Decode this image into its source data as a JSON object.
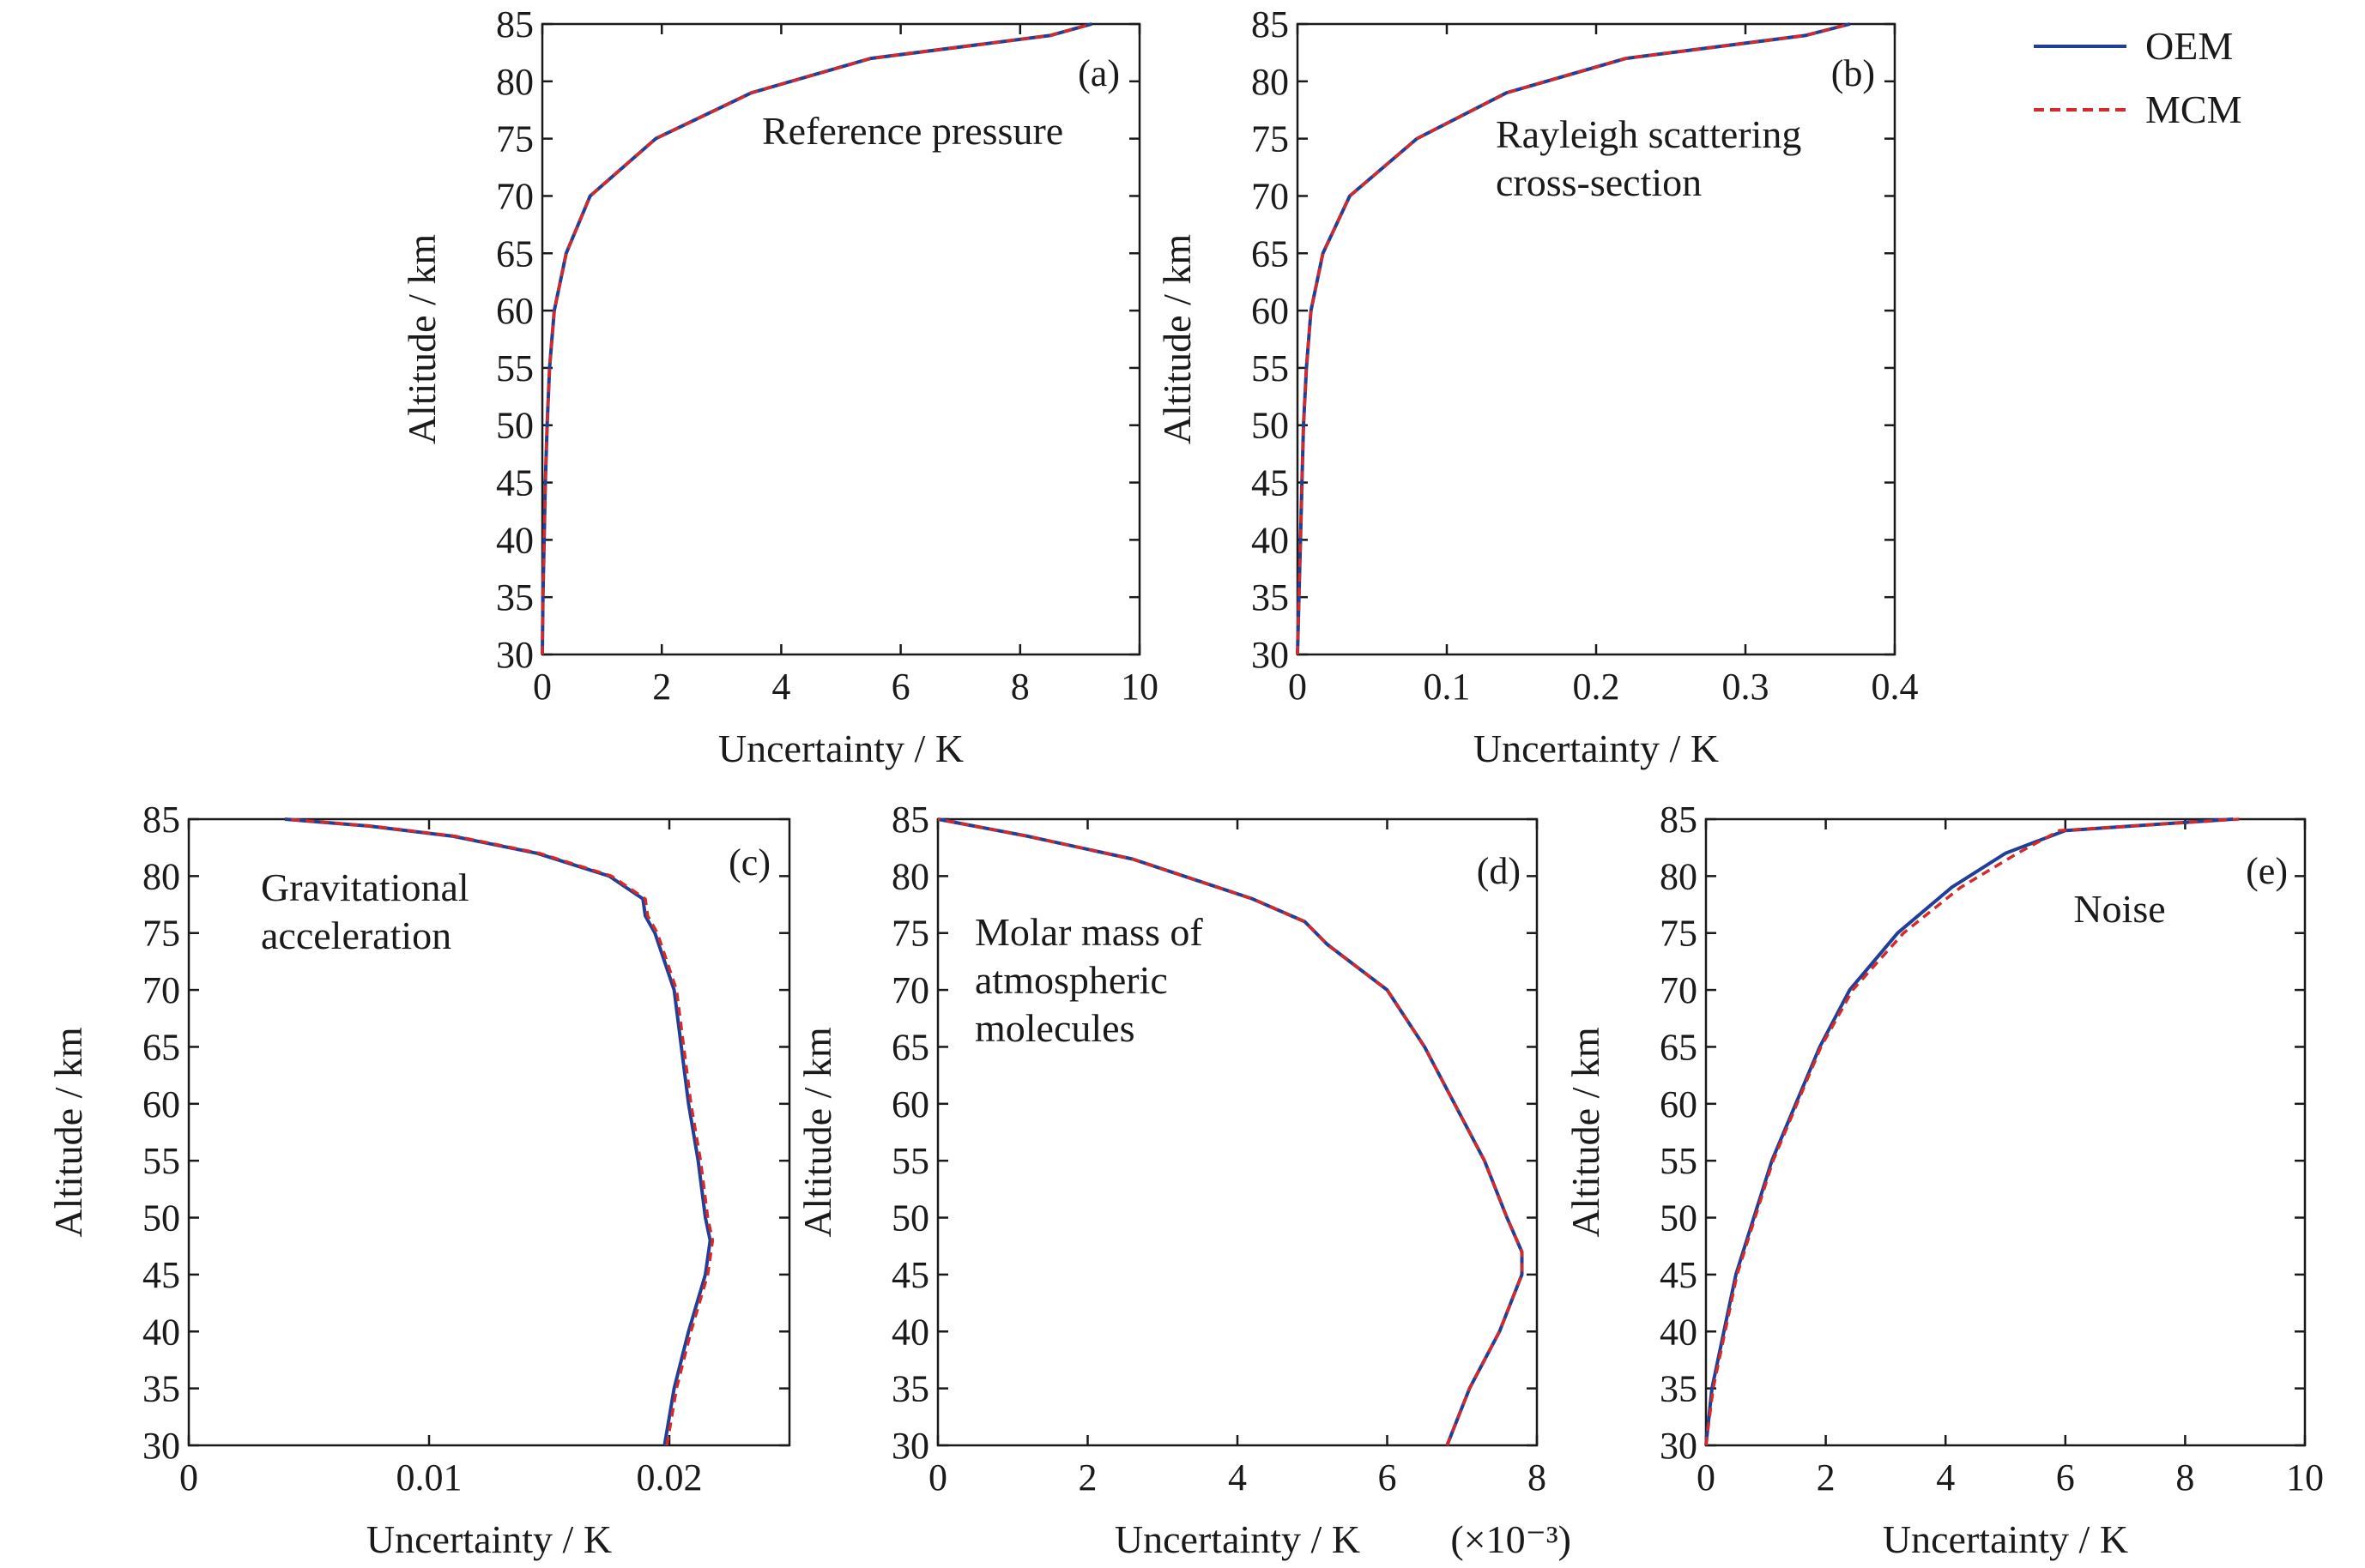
{
  "legend": {
    "position": "top-right",
    "entries": [
      {
        "label": "OEM",
        "color": "#1f3f99",
        "style": "solid"
      },
      {
        "label": "MCM",
        "color": "#d42a2a",
        "style": "dashed"
      }
    ]
  },
  "chart_data": [
    {
      "type": "line",
      "panel_tag": "(a)",
      "annotation": [
        "Reference pressure"
      ],
      "xlabel": "Uncertainty / K",
      "ylabel": "Altitude / km",
      "xlim": [
        0,
        10
      ],
      "ylim": [
        30,
        85
      ],
      "x_ticks": [
        "0",
        "2",
        "4",
        "6",
        "8",
        "10"
      ],
      "y_ticks": [
        "30",
        "35",
        "40",
        "45",
        "50",
        "55",
        "60",
        "65",
        "70",
        "75",
        "80",
        "85"
      ],
      "grid": false,
      "series": [
        {
          "name": "OEM",
          "points": [
            [
              0.0,
              30
            ],
            [
              0.01,
              35
            ],
            [
              0.03,
              40
            ],
            [
              0.05,
              45
            ],
            [
              0.08,
              50
            ],
            [
              0.12,
              55
            ],
            [
              0.2,
              60
            ],
            [
              0.4,
              65
            ],
            [
              0.8,
              70
            ],
            [
              1.9,
              75
            ],
            [
              3.5,
              79
            ],
            [
              5.5,
              82
            ],
            [
              8.5,
              84
            ],
            [
              9.2,
              85
            ]
          ]
        },
        {
          "name": "MCM",
          "points": [
            [
              0.0,
              30
            ],
            [
              0.01,
              35
            ],
            [
              0.03,
              40
            ],
            [
              0.05,
              45
            ],
            [
              0.08,
              50
            ],
            [
              0.12,
              55
            ],
            [
              0.2,
              60
            ],
            [
              0.4,
              65
            ],
            [
              0.8,
              70
            ],
            [
              1.9,
              75
            ],
            [
              3.5,
              79
            ],
            [
              5.5,
              82
            ],
            [
              8.5,
              84
            ],
            [
              9.2,
              85
            ]
          ]
        }
      ]
    },
    {
      "type": "line",
      "panel_tag": "(b)",
      "annotation": [
        "Rayleigh scattering",
        "cross-section"
      ],
      "xlabel": "Uncertainty / K",
      "ylabel": "Altitude / km",
      "xlim": [
        0,
        0.4
      ],
      "ylim": [
        30,
        85
      ],
      "x_ticks": [
        "0",
        "0.1",
        "0.2",
        "0.3",
        "0.4"
      ],
      "y_ticks": [
        "30",
        "35",
        "40",
        "45",
        "50",
        "55",
        "60",
        "65",
        "70",
        "75",
        "80",
        "85"
      ],
      "grid": false,
      "series": [
        {
          "name": "OEM",
          "points": [
            [
              0.0,
              30
            ],
            [
              0.001,
              35
            ],
            [
              0.002,
              40
            ],
            [
              0.003,
              45
            ],
            [
              0.004,
              50
            ],
            [
              0.006,
              55
            ],
            [
              0.009,
              60
            ],
            [
              0.017,
              65
            ],
            [
              0.035,
              70
            ],
            [
              0.08,
              75
            ],
            [
              0.14,
              79
            ],
            [
              0.22,
              82
            ],
            [
              0.34,
              84
            ],
            [
              0.37,
              85
            ]
          ]
        },
        {
          "name": "MCM",
          "points": [
            [
              0.0,
              30
            ],
            [
              0.001,
              35
            ],
            [
              0.002,
              40
            ],
            [
              0.003,
              45
            ],
            [
              0.004,
              50
            ],
            [
              0.006,
              55
            ],
            [
              0.009,
              60
            ],
            [
              0.017,
              65
            ],
            [
              0.035,
              70
            ],
            [
              0.08,
              75
            ],
            [
              0.14,
              79
            ],
            [
              0.22,
              82
            ],
            [
              0.34,
              84
            ],
            [
              0.37,
              85
            ]
          ]
        }
      ]
    },
    {
      "type": "line",
      "panel_tag": "(c)",
      "annotation": [
        "Gravitational",
        "acceleration"
      ],
      "xlabel": "Uncertainty / K",
      "ylabel": "Altitude / km",
      "xlim": [
        0,
        0.025
      ],
      "ylim": [
        30,
        85
      ],
      "x_ticks": [
        "0",
        "0.01",
        "0.02"
      ],
      "y_ticks": [
        "30",
        "35",
        "40",
        "45",
        "50",
        "55",
        "60",
        "65",
        "70",
        "75",
        "80",
        "85"
      ],
      "grid": false,
      "series": [
        {
          "name": "OEM",
          "points": [
            [
              0.0198,
              30
            ],
            [
              0.0202,
              35
            ],
            [
              0.0208,
              40
            ],
            [
              0.0215,
              45
            ],
            [
              0.0217,
              48
            ],
            [
              0.0215,
              50
            ],
            [
              0.0212,
              55
            ],
            [
              0.0208,
              60
            ],
            [
              0.0205,
              65
            ],
            [
              0.0202,
              70
            ],
            [
              0.0194,
              75
            ],
            [
              0.019,
              76.5
            ],
            [
              0.0189,
              78
            ],
            [
              0.0175,
              80
            ],
            [
              0.0145,
              82
            ],
            [
              0.011,
              83.5
            ],
            [
              0.0075,
              84.4
            ],
            [
              0.004,
              85
            ]
          ]
        },
        {
          "name": "MCM",
          "points": [
            [
              0.0199,
              30
            ],
            [
              0.0203,
              35
            ],
            [
              0.0209,
              40
            ],
            [
              0.0216,
              45
            ],
            [
              0.0218,
              48
            ],
            [
              0.0216,
              50
            ],
            [
              0.0213,
              55
            ],
            [
              0.0209,
              60
            ],
            [
              0.0206,
              65
            ],
            [
              0.0203,
              70
            ],
            [
              0.0195,
              75
            ],
            [
              0.0191,
              76.5
            ],
            [
              0.019,
              78
            ],
            [
              0.0176,
              80
            ],
            [
              0.0146,
              82
            ],
            [
              0.0111,
              83.5
            ],
            [
              0.0076,
              84.4
            ],
            [
              0.004,
              85
            ]
          ]
        }
      ]
    },
    {
      "type": "line",
      "panel_tag": "(d)",
      "annotation": [
        "Molar mass of",
        "atmospheric",
        "molecules"
      ],
      "xlabel": "Uncertainty / K",
      "x_scale_note": "(×10⁻³)",
      "ylabel": "Altitude / km",
      "xlim": [
        0,
        8
      ],
      "ylim": [
        30,
        85
      ],
      "x_ticks": [
        "0",
        "2",
        "4",
        "6",
        "8"
      ],
      "y_ticks": [
        "30",
        "35",
        "40",
        "45",
        "50",
        "55",
        "60",
        "65",
        "70",
        "75",
        "80",
        "85"
      ],
      "grid": false,
      "series": [
        {
          "name": "OEM",
          "points": [
            [
              6.8,
              30
            ],
            [
              7.1,
              35
            ],
            [
              7.5,
              40
            ],
            [
              7.8,
              45
            ],
            [
              7.8,
              47
            ],
            [
              7.6,
              50
            ],
            [
              7.3,
              55
            ],
            [
              6.9,
              60
            ],
            [
              6.5,
              65
            ],
            [
              6.0,
              70
            ],
            [
              5.2,
              74
            ],
            [
              4.9,
              76
            ],
            [
              4.2,
              78
            ],
            [
              2.6,
              81.5
            ],
            [
              1.2,
              83.5
            ],
            [
              0.0,
              85
            ]
          ]
        },
        {
          "name": "MCM",
          "points": [
            [
              6.8,
              30
            ],
            [
              7.1,
              35
            ],
            [
              7.5,
              40
            ],
            [
              7.8,
              45
            ],
            [
              7.8,
              47
            ],
            [
              7.6,
              50
            ],
            [
              7.3,
              55
            ],
            [
              6.9,
              60
            ],
            [
              6.5,
              65
            ],
            [
              6.0,
              70
            ],
            [
              5.2,
              74
            ],
            [
              4.9,
              76
            ],
            [
              4.2,
              78
            ],
            [
              2.6,
              81.5
            ],
            [
              1.2,
              83.5
            ],
            [
              0.0,
              85
            ]
          ]
        }
      ]
    },
    {
      "type": "line",
      "panel_tag": "(e)",
      "annotation": [
        "Noise"
      ],
      "xlabel": "Uncertainty / K",
      "ylabel": "Altitude / km",
      "xlim": [
        0,
        10
      ],
      "ylim": [
        30,
        85
      ],
      "x_ticks": [
        "0",
        "2",
        "4",
        "6",
        "8",
        "10"
      ],
      "y_ticks": [
        "30",
        "35",
        "40",
        "45",
        "50",
        "55",
        "60",
        "65",
        "70",
        "75",
        "80",
        "85"
      ],
      "grid": false,
      "series": [
        {
          "name": "OEM",
          "points": [
            [
              0.0,
              30
            ],
            [
              0.1,
              35
            ],
            [
              0.3,
              40
            ],
            [
              0.5,
              45
            ],
            [
              0.8,
              50
            ],
            [
              1.1,
              55
            ],
            [
              1.5,
              60
            ],
            [
              1.9,
              65
            ],
            [
              2.4,
              70
            ],
            [
              3.2,
              75
            ],
            [
              4.1,
              79
            ],
            [
              5.0,
              82
            ],
            [
              6.0,
              84
            ],
            [
              8.8,
              85
            ]
          ]
        },
        {
          "name": "MCM",
          "points": [
            [
              0.0,
              30
            ],
            [
              0.12,
              35
            ],
            [
              0.32,
              40
            ],
            [
              0.52,
              45
            ],
            [
              0.82,
              50
            ],
            [
              1.12,
              55
            ],
            [
              1.52,
              60
            ],
            [
              1.92,
              65
            ],
            [
              2.45,
              70
            ],
            [
              3.3,
              75
            ],
            [
              4.25,
              79
            ],
            [
              5.2,
              82
            ],
            [
              5.9,
              84
            ],
            [
              8.9,
              85
            ]
          ]
        }
      ]
    }
  ]
}
